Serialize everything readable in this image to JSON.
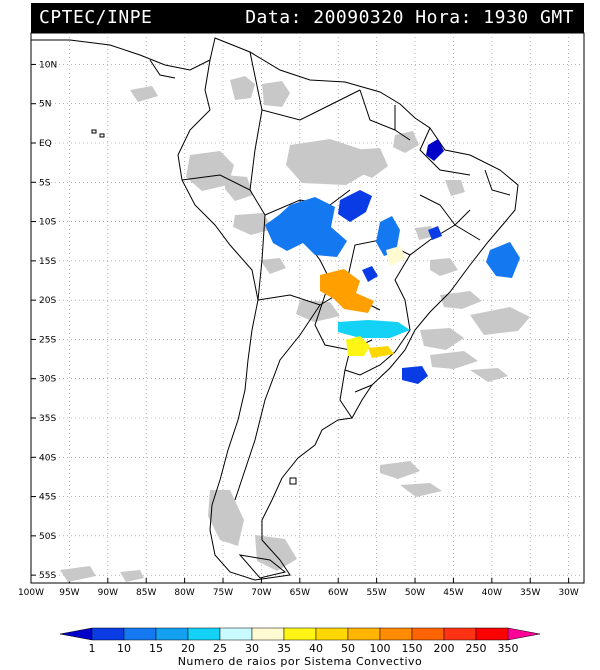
{
  "header": {
    "source": "CPTEC/INPE",
    "datetime": "Data: 20090320 Hora: 1930 GMT"
  },
  "map": {
    "lat_ticks": [
      "10N",
      "5N",
      "EQ",
      "5S",
      "10S",
      "15S",
      "20S",
      "25S",
      "30S",
      "35S",
      "40S",
      "45S",
      "50S",
      "55S"
    ],
    "lon_ticks": [
      "100W",
      "95W",
      "90W",
      "85W",
      "80W",
      "75W",
      "70W",
      "65W",
      "60W",
      "55W",
      "50W",
      "45W",
      "40W",
      "35W",
      "30W"
    ],
    "lat_range": [
      -56,
      14
    ],
    "lon_range": [
      -100,
      -28
    ]
  },
  "colorbar": {
    "labels": [
      "1",
      "10",
      "15",
      "20",
      "25",
      "30",
      "35",
      "40",
      "50",
      "100",
      "150",
      "200",
      "250",
      "350"
    ],
    "colors": [
      "#0000c8",
      "#0a3ce6",
      "#1478f0",
      "#14a0f0",
      "#14d2f5",
      "#c8faff",
      "#fffad2",
      "#fff514",
      "#ffd700",
      "#ffb400",
      "#ff8c00",
      "#ff6400",
      "#ff3214",
      "#ff0000",
      "#ff0096"
    ],
    "caption": "Numero de raios por Sistema Convectivo"
  },
  "colors": {
    "land_outline": "#000000",
    "cloud": "#c8c8c8",
    "grid": "#888888"
  }
}
